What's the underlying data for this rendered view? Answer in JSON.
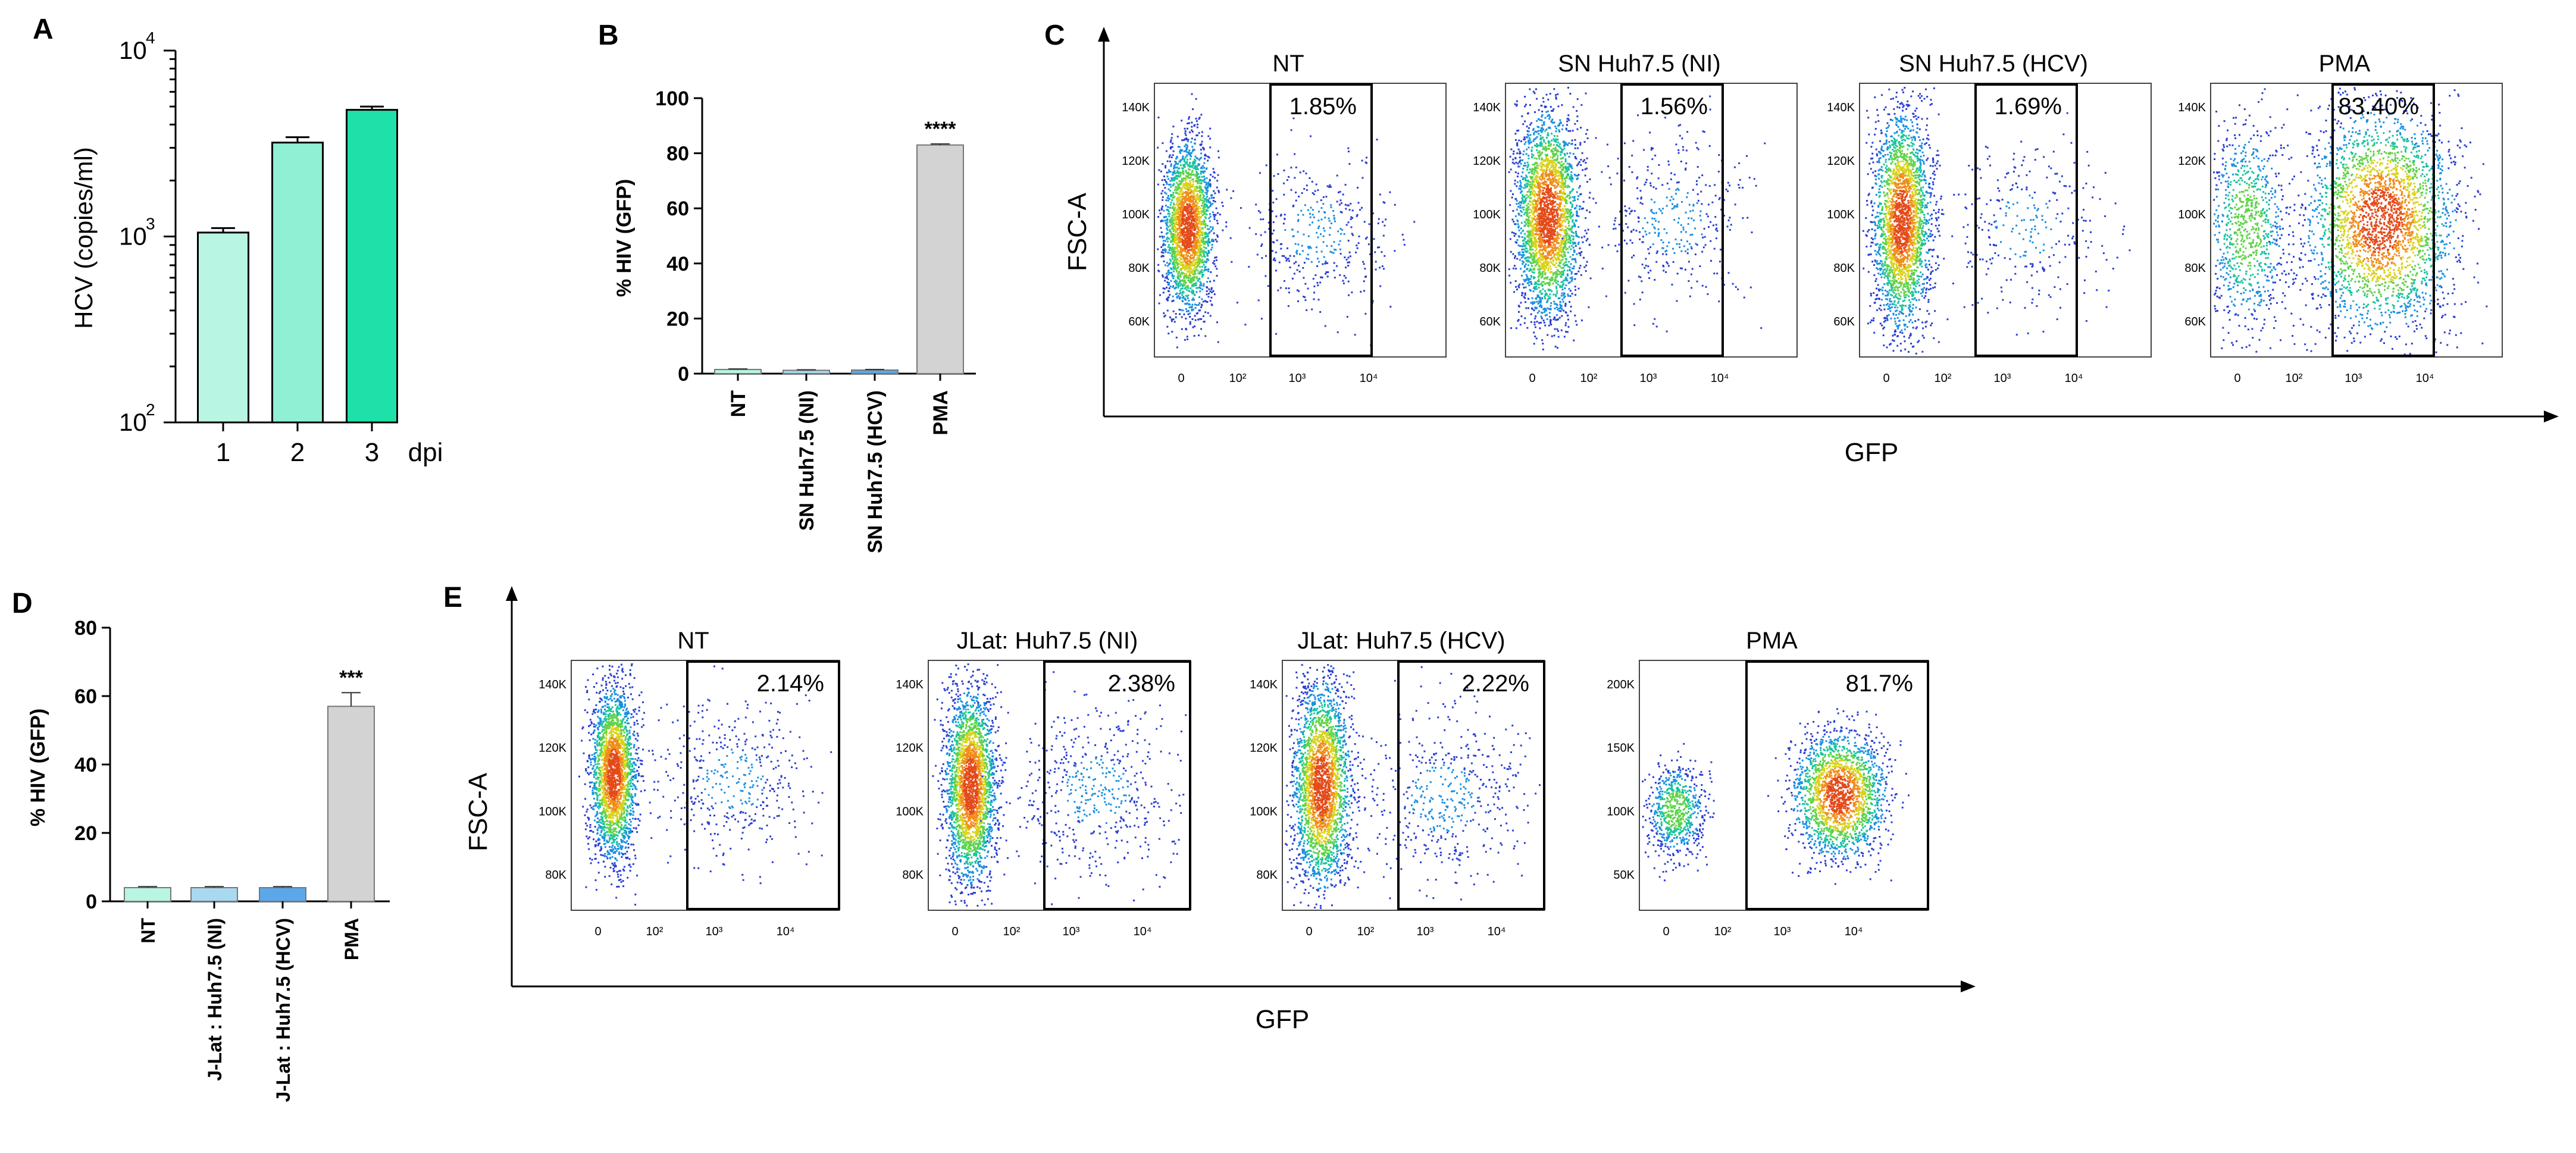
{
  "panels": {
    "A": {
      "letter": "A"
    },
    "B": {
      "letter": "B"
    },
    "C": {
      "letter": "C"
    },
    "D": {
      "letter": "D"
    },
    "E": {
      "letter": "E"
    }
  },
  "chart_data": [
    {
      "id": "A",
      "type": "bar",
      "scale": "log",
      "ylabel": "HCV (copies/ml)",
      "xlabel": "dpi",
      "categories": [
        "1",
        "2",
        "3"
      ],
      "values": [
        1050,
        3200,
        4800
      ],
      "errors": [
        60,
        220,
        200
      ],
      "ylim": [
        100,
        10000
      ],
      "yticks": [
        {
          "value": 100,
          "base": "10",
          "exp": "2"
        },
        {
          "value": 1000,
          "base": "10",
          "exp": "3"
        },
        {
          "value": 10000,
          "base": "10",
          "exp": "4"
        }
      ],
      "colors": [
        "#b8f5e3",
        "#8ff0d4",
        "#1fe0a8"
      ]
    },
    {
      "id": "B",
      "type": "bar",
      "ylabel": "% HIV (GFP)",
      "categories": [
        "NT",
        "SN Huh7.5 (NI)",
        "SN Huh7.5 (HCV)",
        "PMA"
      ],
      "values": [
        1.5,
        1.2,
        1.3,
        83
      ],
      "errors": [
        0.2,
        0.2,
        0.2,
        0.4
      ],
      "ylim": [
        0,
        100
      ],
      "yticks": [
        "0",
        "20",
        "40",
        "60",
        "80",
        "100"
      ],
      "significance": [
        "",
        "",
        "",
        "****"
      ],
      "colors": [
        "#b8f5e3",
        "#a9d9ee",
        "#5aa8ea",
        "#d3d3d3"
      ]
    },
    {
      "id": "D",
      "type": "bar",
      "ylabel": "% HIV (GFP)",
      "categories": [
        "NT",
        "J-Lat : Huh7.5 (NI)",
        "J-Lat : Huh7.5 (HCV)",
        "PMA"
      ],
      "values": [
        4,
        4,
        4,
        57
      ],
      "errors": [
        0.3,
        0.3,
        0.3,
        4
      ],
      "ylim": [
        0,
        80
      ],
      "yticks": [
        "0",
        "20",
        "40",
        "60",
        "80"
      ],
      "significance": [
        "",
        "",
        "",
        "***"
      ],
      "colors": [
        "#b8f5e3",
        "#a9d9ee",
        "#5aa8ea",
        "#d3d3d3"
      ]
    },
    {
      "id": "C",
      "type": "scatter",
      "xlabel": "GFP",
      "ylabel": "FSC-A",
      "plots": [
        {
          "title": "NT",
          "gate_percent": "1.85%",
          "yticks": [
            "60K",
            "80K",
            "100K",
            "120K",
            "140K"
          ]
        },
        {
          "title": "SN Huh7.5 (NI)",
          "gate_percent": "1.56%",
          "yticks": [
            "60K",
            "80K",
            "100K",
            "120K",
            "140K"
          ]
        },
        {
          "title": "SN Huh7.5 (HCV)",
          "gate_percent": "1.69%",
          "yticks": [
            "60K",
            "80K",
            "100K",
            "120K",
            "140K"
          ]
        },
        {
          "title": "PMA",
          "gate_percent": "83.40%",
          "yticks": [
            "60K",
            "80K",
            "100K",
            "120K",
            "140K"
          ]
        }
      ],
      "xticks": [
        "0",
        "10²",
        "10³",
        "10⁴"
      ]
    },
    {
      "id": "E",
      "type": "scatter",
      "xlabel": "GFP",
      "ylabel": "FSC-A",
      "plots": [
        {
          "title": "NT",
          "gate_percent": "2.14%",
          "yticks": [
            "80K",
            "100K",
            "120K",
            "140K"
          ]
        },
        {
          "title": "JLat: Huh7.5 (NI)",
          "gate_percent": "2.38%",
          "yticks": [
            "80K",
            "100K",
            "120K",
            "140K"
          ]
        },
        {
          "title": "JLat: Huh7.5 (HCV)",
          "gate_percent": "2.22%",
          "yticks": [
            "80K",
            "100K",
            "120K",
            "140K"
          ]
        },
        {
          "title": "PMA",
          "gate_percent": "81.7%",
          "yticks": [
            "50K",
            "100K",
            "150K",
            "200K"
          ]
        }
      ],
      "xticks": [
        "0",
        "10²",
        "10³",
        "10⁴"
      ]
    }
  ]
}
